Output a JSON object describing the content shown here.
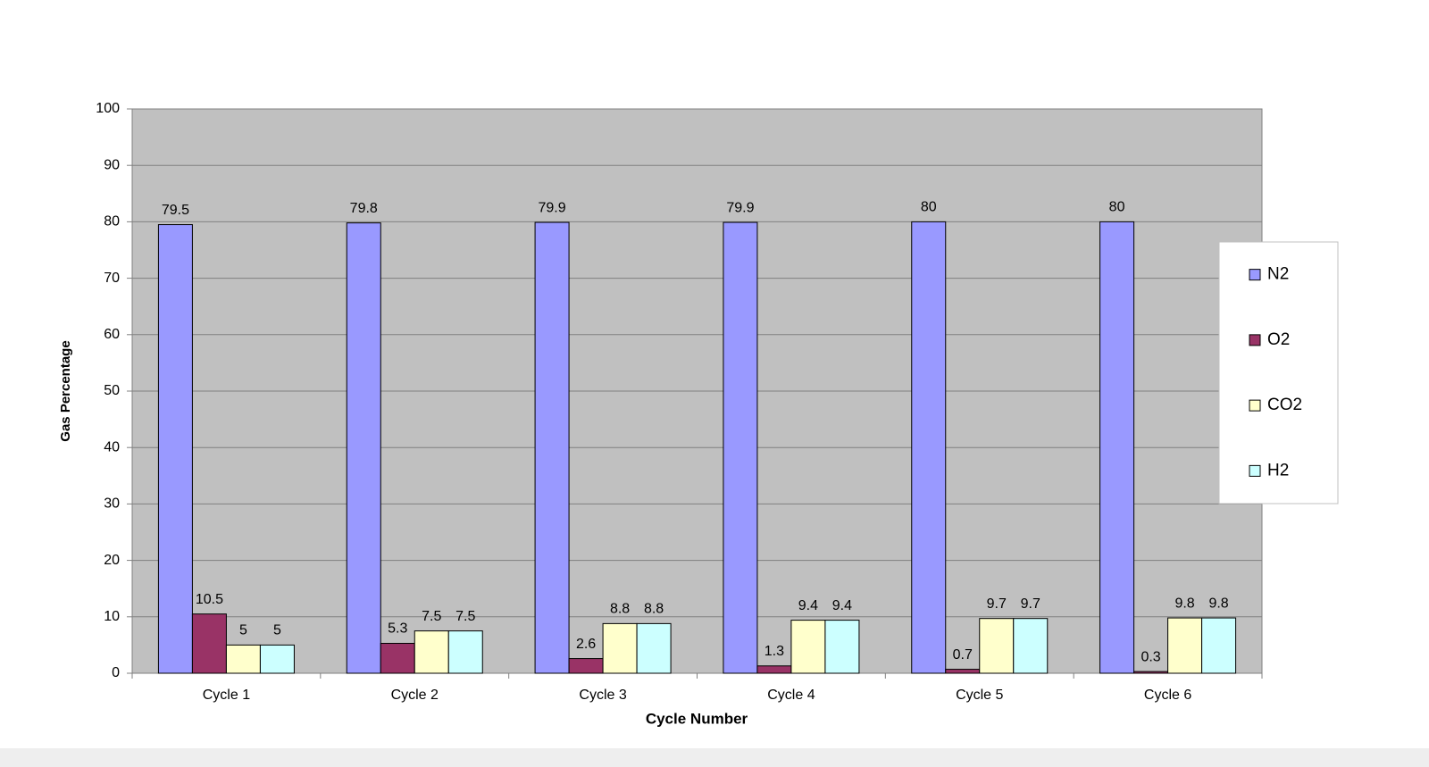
{
  "chart_data": {
    "type": "bar",
    "x_label": "Cycle Number",
    "y_label": "Gas Percentage",
    "categories": [
      "Cycle 1",
      "Cycle 2",
      "Cycle 3",
      "Cycle 4",
      "Cycle 5",
      "Cycle 6"
    ],
    "series": [
      {
        "name": "N2",
        "color": "#9999ff",
        "values": [
          79.5,
          79.8,
          79.9,
          79.9,
          80,
          80
        ]
      },
      {
        "name": "O2",
        "color": "#993366",
        "values": [
          10.5,
          5.3,
          2.6,
          1.3,
          0.7,
          0.3
        ]
      },
      {
        "name": "CO2",
        "color": "#ffffcc",
        "values": [
          5,
          7.5,
          8.8,
          9.4,
          9.7,
          9.8
        ]
      },
      {
        "name": "H2",
        "color": "#ccffff",
        "values": [
          5,
          7.5,
          8.8,
          9.4,
          9.7,
          9.8
        ]
      }
    ],
    "ylim": [
      0,
      100
    ],
    "yticks": [
      0,
      10,
      20,
      30,
      40,
      50,
      60,
      70,
      80,
      90,
      100
    ],
    "grid": true,
    "legend": "right",
    "plot_background": "#c0c0c0"
  }
}
